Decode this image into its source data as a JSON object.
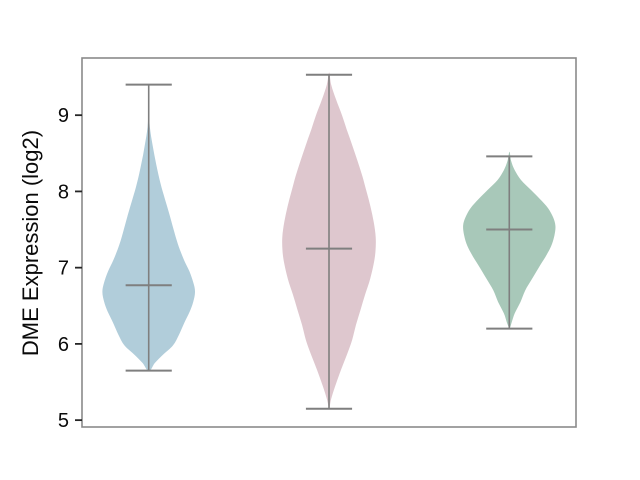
{
  "figure": {
    "background": "#ffffff"
  },
  "chart_data": {
    "type": "violin",
    "title": "",
    "xlabel": "",
    "ylabel": "DME Expression (log2)",
    "yticks": [
      5,
      6,
      7,
      8,
      9
    ],
    "ylim": [
      4.91,
      9.75
    ],
    "xlim": [
      -0.37,
      2.37
    ],
    "grid": false,
    "legend": "none",
    "frame_color": "#8a8a8a",
    "line_color": "#7f7f7f",
    "tick_color": "#262626",
    "text_color": "#0a0a0a",
    "inner_cap_halfwidth": 0.128,
    "series": [
      {
        "position": 0,
        "fill": "#b1cdda",
        "whisker_min": 5.65,
        "whisker_max": 9.4,
        "median": 6.77,
        "profile": [
          [
            9.4,
            0.001
          ],
          [
            9.1,
            0.002
          ],
          [
            8.85,
            0.006
          ],
          [
            8.6,
            0.022
          ],
          [
            8.35,
            0.042
          ],
          [
            8.1,
            0.066
          ],
          [
            7.9,
            0.09
          ],
          [
            7.7,
            0.115
          ],
          [
            7.5,
            0.138
          ],
          [
            7.3,
            0.163
          ],
          [
            7.1,
            0.196
          ],
          [
            6.95,
            0.226
          ],
          [
            6.8,
            0.248
          ],
          [
            6.68,
            0.257
          ],
          [
            6.55,
            0.247
          ],
          [
            6.42,
            0.227
          ],
          [
            6.28,
            0.198
          ],
          [
            6.12,
            0.168
          ],
          [
            5.98,
            0.135
          ],
          [
            5.86,
            0.08
          ],
          [
            5.75,
            0.034
          ],
          [
            5.64,
            0.001
          ]
        ]
      },
      {
        "position": 1,
        "fill": "#dec7ce",
        "whisker_min": 5.15,
        "whisker_max": 9.53,
        "median": 7.25,
        "profile": [
          [
            9.56,
            0.001
          ],
          [
            9.4,
            0.012
          ],
          [
            9.2,
            0.04
          ],
          [
            9.0,
            0.072
          ],
          [
            8.8,
            0.1
          ],
          [
            8.6,
            0.13
          ],
          [
            8.4,
            0.158
          ],
          [
            8.2,
            0.185
          ],
          [
            8.0,
            0.208
          ],
          [
            7.8,
            0.23
          ],
          [
            7.6,
            0.248
          ],
          [
            7.4,
            0.259
          ],
          [
            7.22,
            0.258
          ],
          [
            7.05,
            0.248
          ],
          [
            6.85,
            0.228
          ],
          [
            6.65,
            0.201
          ],
          [
            6.45,
            0.175
          ],
          [
            6.25,
            0.15
          ],
          [
            6.05,
            0.128
          ],
          [
            5.85,
            0.098
          ],
          [
            5.65,
            0.065
          ],
          [
            5.45,
            0.035
          ],
          [
            5.28,
            0.012
          ],
          [
            5.16,
            0.001
          ]
        ]
      },
      {
        "position": 2,
        "fill": "#a8c8b9",
        "whisker_min": 6.2,
        "whisker_max": 8.46,
        "median": 7.5,
        "profile": [
          [
            8.52,
            0.001
          ],
          [
            8.4,
            0.01
          ],
          [
            8.28,
            0.03
          ],
          [
            8.15,
            0.065
          ],
          [
            8.02,
            0.12
          ],
          [
            7.9,
            0.17
          ],
          [
            7.78,
            0.215
          ],
          [
            7.66,
            0.243
          ],
          [
            7.55,
            0.256
          ],
          [
            7.42,
            0.25
          ],
          [
            7.28,
            0.232
          ],
          [
            7.14,
            0.2
          ],
          [
            7.0,
            0.163
          ],
          [
            6.86,
            0.128
          ],
          [
            6.7,
            0.088
          ],
          [
            6.55,
            0.062
          ],
          [
            6.4,
            0.03
          ],
          [
            6.28,
            0.013
          ],
          [
            6.21,
            0.001
          ]
        ]
      }
    ]
  }
}
